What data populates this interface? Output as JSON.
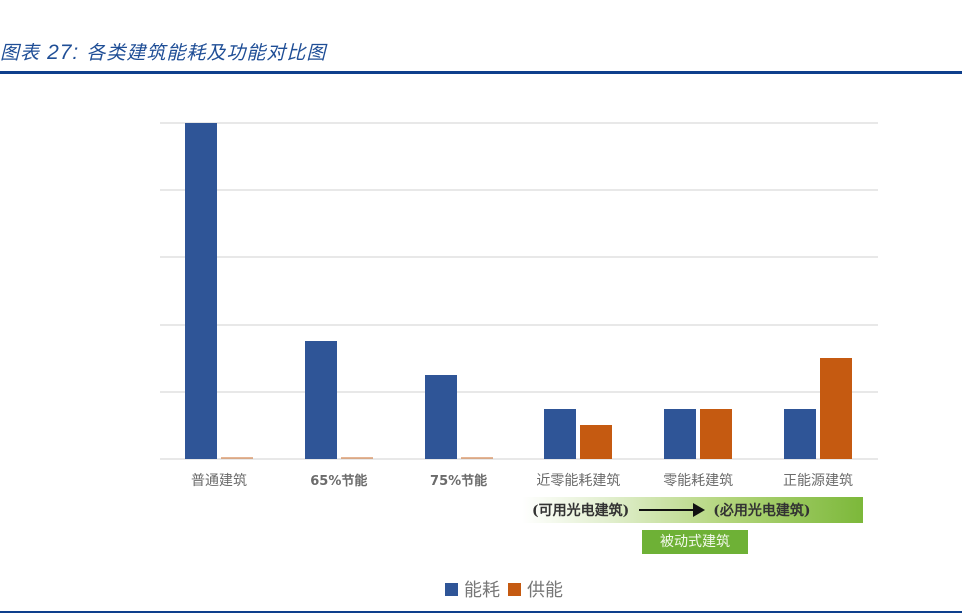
{
  "header": {
    "title_prefix": "图表",
    "title_number": "27:",
    "title_text": "各类建筑能耗及功能对比图"
  },
  "colors": {
    "energy_consumption": "#2f5597",
    "energy_supply": "#c55a11",
    "rule": "#0e3f8c",
    "band_green": "#7cb83a",
    "tag_green": "#6eb136"
  },
  "chart_data": {
    "type": "bar",
    "title": "各类建筑能耗及功能对比图",
    "xlabel": "",
    "ylabel": "",
    "ylim": [
      0,
      5
    ],
    "grid": true,
    "y_ticks_labeled": false,
    "legend_position": "bottom",
    "categories": [
      "普通建筑",
      "65%节能",
      "75%节能",
      "近零能耗建筑",
      "零能耗建筑",
      "正能源建筑"
    ],
    "series": [
      {
        "name": "能耗",
        "color": "#2f5597",
        "values": [
          5.0,
          1.75,
          1.25,
          0.75,
          0.75,
          0.75
        ]
      },
      {
        "name": "供能",
        "color": "#c55a11",
        "values": [
          0.0,
          0.0,
          0.0,
          0.5,
          0.75,
          1.5
        ]
      }
    ],
    "annotations": [
      "(可用光电建筑) ⟶ (必用光电建筑)",
      "被动式建筑"
    ]
  },
  "annotations": {
    "band_left": "(可用光电建筑)",
    "band_right": "(必用光电建筑)",
    "tag": "被动式建筑"
  },
  "legend": {
    "items": [
      {
        "label": "能耗"
      },
      {
        "label": "供能"
      }
    ]
  }
}
